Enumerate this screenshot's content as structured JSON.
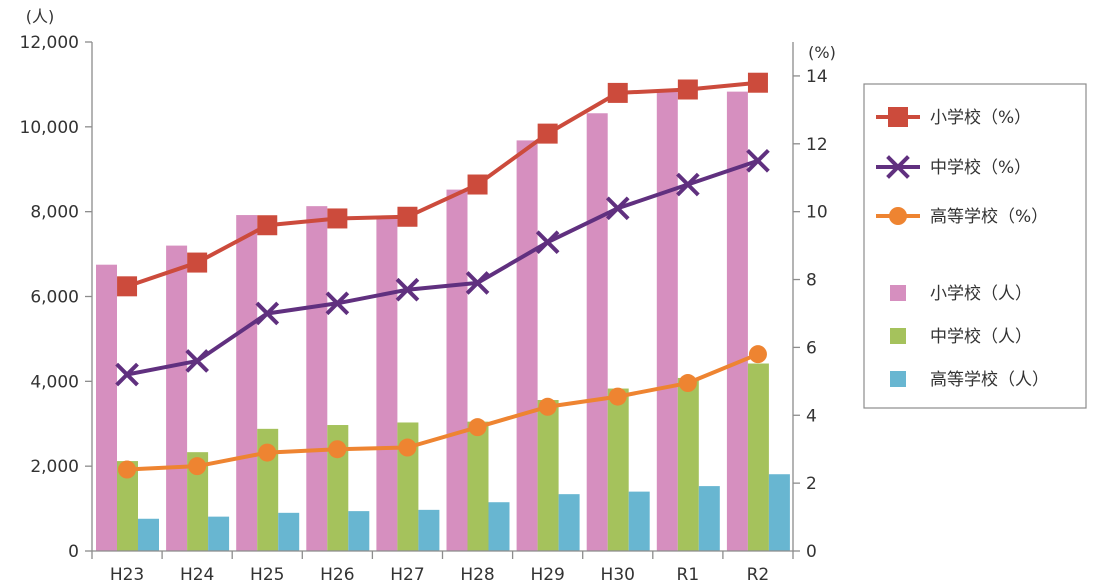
{
  "chart_data": {
    "type": "bar+line",
    "categories": [
      "H23",
      "H24",
      "H25",
      "H26",
      "H27",
      "H28",
      "H29",
      "H30",
      "R1",
      "R2"
    ],
    "left_axis": {
      "unit": "(人)",
      "ylim": [
        0,
        12000
      ],
      "ticks": [
        "0",
        "2,000",
        "4,000",
        "6,000",
        "8,000",
        "10,000",
        "12,000"
      ]
    },
    "right_axis": {
      "unit": "(%)",
      "ylim": [
        0,
        15
      ],
      "ticks": [
        "0",
        "2",
        "4",
        "6",
        "8",
        "10",
        "12",
        "14"
      ]
    },
    "bar_series": [
      {
        "name": "小学校（人）",
        "color": "#d68fbf",
        "values": [
          6750,
          7200,
          7920,
          8130,
          7830,
          8520,
          9680,
          10320,
          10880,
          10830
        ]
      },
      {
        "name": "中学校（人）",
        "color": "#a5c25c",
        "values": [
          2120,
          2330,
          2880,
          2970,
          3030,
          3050,
          3560,
          3830,
          4080,
          4420
        ]
      },
      {
        "name": "高等学校（人）",
        "color": "#68b6d1",
        "values": [
          760,
          810,
          900,
          940,
          970,
          1150,
          1340,
          1400,
          1530,
          1810
        ]
      }
    ],
    "line_series": [
      {
        "name": "小学校（%）",
        "color": "#cc4b3c",
        "marker": "square",
        "values": [
          7.8,
          8.5,
          9.6,
          9.8,
          9.85,
          10.8,
          12.3,
          13.5,
          13.6,
          13.8
        ]
      },
      {
        "name": "中学校（%）",
        "color": "#60307f",
        "marker": "x",
        "values": [
          5.2,
          5.6,
          7.0,
          7.3,
          7.7,
          7.9,
          9.1,
          10.1,
          10.8,
          11.5
        ]
      },
      {
        "name": "高等学校（%）",
        "color": "#ee8431",
        "marker": "circle",
        "values": [
          2.4,
          2.5,
          2.9,
          3.0,
          3.05,
          3.65,
          4.25,
          4.55,
          4.95,
          5.8
        ]
      }
    ],
    "legend": {
      "position": "right",
      "entries": [
        "小学校（%）",
        "中学校（%）",
        "高等学校（%）",
        "小学校（人）",
        "中学校（人）",
        "高等学校（人）"
      ]
    }
  }
}
